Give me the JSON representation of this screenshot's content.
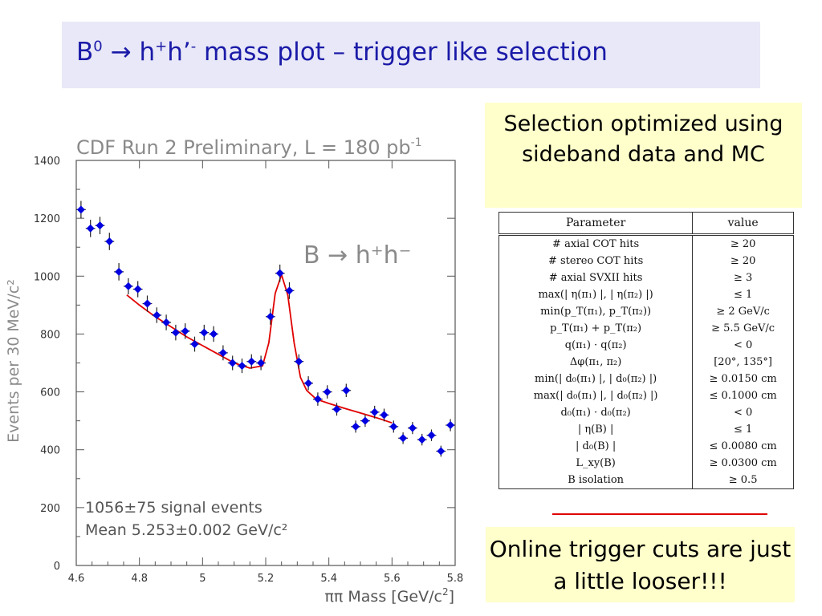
{
  "slide": {
    "title_prefix": "B",
    "title_b_sup": "0",
    "title_arrow": "→",
    "title_h1": "h",
    "title_h1_sup": "+",
    "title_h2": "h’",
    "title_h2_sup": "-",
    "title_suffix": " mass plot – trigger like selection",
    "callout_top": "Selection optimized using sideband data and MC",
    "callout_bottom": "Online trigger cuts are just a little looser!!!",
    "colors": {
      "title": "#1a1aa8",
      "title_bg": "#e8e8f8",
      "callout_bg": "#ffffcc",
      "points": "#0000e0",
      "fit": "#e00000",
      "axis": "#555555"
    }
  },
  "chart_data": {
    "type": "scatter",
    "title": "CDF Run 2 Preliminary, L = 180 pb",
    "title_sup": "-1",
    "xlabel": "ππ Mass [GeV/c",
    "xlabel_sup": "2",
    "xlabel_end": "]",
    "ylabel": "Events per 30 MeV/c²",
    "xlim": [
      4.6,
      5.8
    ],
    "ylim": [
      0,
      1400
    ],
    "xticks": [
      "4.6",
      "4.8",
      "5",
      "5.2",
      "5.4",
      "5.6",
      "5.8"
    ],
    "yticks": [
      "0",
      "200",
      "400",
      "600",
      "800",
      "1000",
      "1200",
      "1400"
    ],
    "grid": false,
    "plot_label": "B → h⁺h⁻",
    "annotation_1": "1056±75 signal events",
    "annotation_2": "Mean 5.253±0.002 GeV/c²",
    "series": [
      {
        "type": "points_with_errors",
        "x": [
          4.615,
          4.645,
          4.675,
          4.705,
          4.735,
          4.765,
          4.795,
          4.825,
          4.855,
          4.885,
          4.915,
          4.945,
          4.975,
          5.005,
          5.035,
          5.065,
          5.095,
          5.125,
          5.155,
          5.185,
          5.215,
          5.245,
          5.275,
          5.305,
          5.335,
          5.365,
          5.395,
          5.425,
          5.455,
          5.485,
          5.515,
          5.545,
          5.575,
          5.605,
          5.635,
          5.665,
          5.695,
          5.725,
          5.755,
          5.785
        ],
        "y": [
          1230,
          1165,
          1175,
          1120,
          1015,
          965,
          955,
          905,
          865,
          840,
          805,
          810,
          765,
          805,
          800,
          735,
          700,
          690,
          705,
          700,
          860,
          1010,
          950,
          705,
          630,
          575,
          600,
          540,
          605,
          480,
          500,
          530,
          520,
          480,
          440,
          475,
          435,
          450,
          395,
          485
        ],
        "yerr": [
          30,
          30,
          30,
          30,
          30,
          28,
          28,
          28,
          27,
          27,
          27,
          27,
          26,
          27,
          27,
          26,
          25,
          25,
          25,
          25,
          28,
          30,
          29,
          25,
          24,
          23,
          23,
          22,
          23,
          21,
          21,
          22,
          22,
          21,
          20,
          21,
          20,
          20,
          19,
          21
        ]
      },
      {
        "type": "fit_line",
        "x": [
          4.76,
          4.8,
          4.85,
          4.9,
          4.95,
          5.0,
          5.05,
          5.1,
          5.15,
          5.19,
          5.21,
          5.23,
          5.25,
          5.27,
          5.29,
          5.31,
          5.33,
          5.36,
          5.4,
          5.45,
          5.5,
          5.55,
          5.6
        ],
        "y": [
          935,
          900,
          860,
          825,
          790,
          760,
          730,
          700,
          682,
          690,
          770,
          940,
          1005,
          935,
          770,
          650,
          605,
          575,
          560,
          543,
          527,
          511,
          493
        ]
      }
    ]
  },
  "table": {
    "headers": [
      "Parameter",
      "value"
    ],
    "rows": [
      [
        "# axial COT hits",
        "≥ 20"
      ],
      [
        "# stereo COT hits",
        "≥ 20"
      ],
      [
        "# axial SVXII hits",
        "≥ 3"
      ],
      [
        "max(| η(π₁) |, | η(π₂) |)",
        "≤ 1"
      ],
      [
        "min(p_T(π₁), p_T(π₂))",
        "≥ 2 GeV/c"
      ],
      [
        "p_T(π₁) + p_T(π₂)",
        "≥ 5.5 GeV/c"
      ],
      [
        "q(π₁) · q(π₂)",
        "< 0"
      ],
      [
        "Δφ(π₁, π₂)",
        "[20°, 135°]"
      ],
      [
        "min(| d₀(π₁) |, | d₀(π₂) |)",
        "≥ 0.0150 cm"
      ],
      [
        "max(| d₀(π₁) |, | d₀(π₂) |)",
        "≤ 0.1000 cm"
      ],
      [
        "d₀(π₁) · d₀(π₂)",
        "< 0"
      ],
      [
        "| η(B) |",
        "≤ 1"
      ],
      [
        "| d₀(B) |",
        "≤ 0.0080 cm"
      ],
      [
        "L_xy(B)",
        "≥ 0.0300 cm"
      ],
      [
        "B isolation",
        "≥ 0.5"
      ]
    ]
  }
}
